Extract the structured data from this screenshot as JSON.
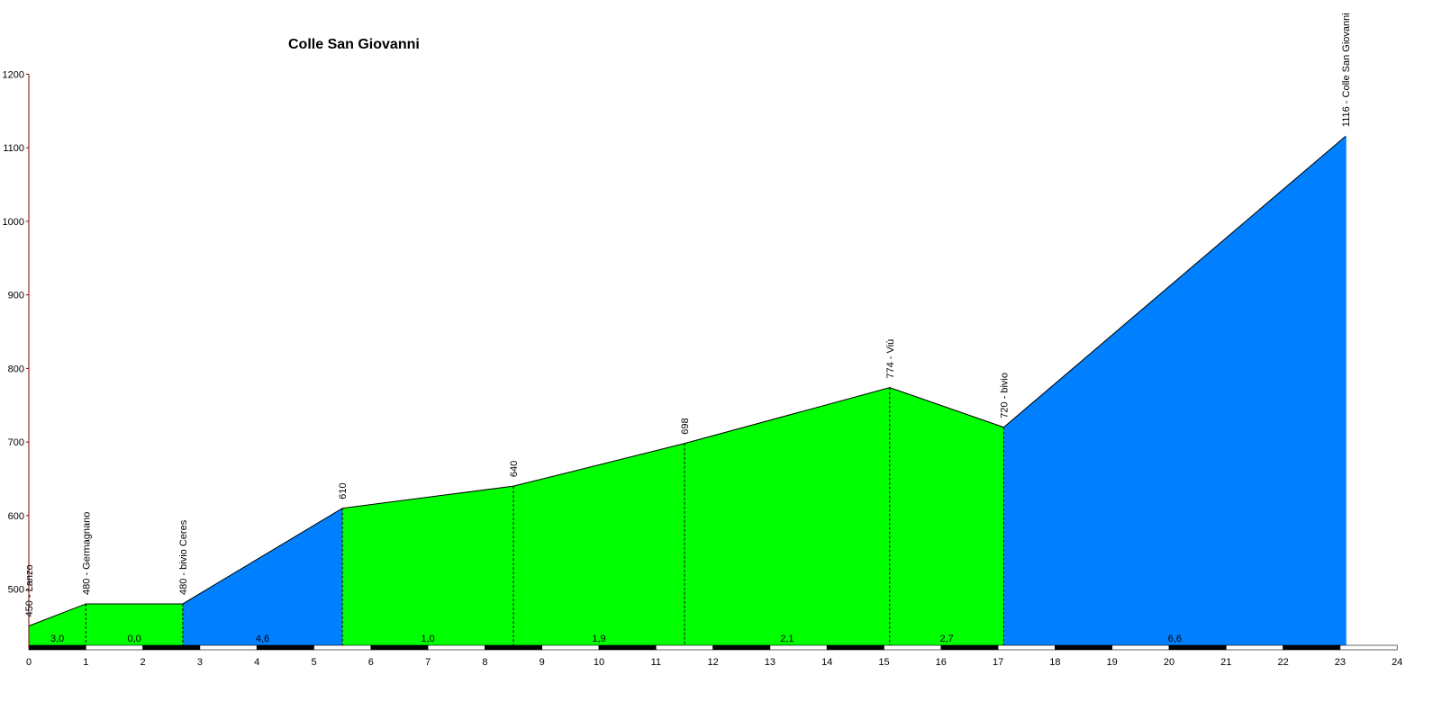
{
  "chart_data": {
    "type": "area",
    "title": "Colle San Giovanni",
    "xlabel": "",
    "ylabel": "",
    "xlim": [
      0,
      24
    ],
    "ylim": [
      420,
      1200
    ],
    "x_ticks": [
      "0",
      "1",
      "2",
      "3",
      "4",
      "5",
      "6",
      "7",
      "8",
      "9",
      "10",
      "11",
      "12",
      "13",
      "14",
      "15",
      "16",
      "17",
      "18",
      "19",
      "20",
      "21",
      "22",
      "23",
      "24"
    ],
    "y_ticks": [
      "500",
      "600",
      "700",
      "800",
      "900",
      "1000",
      "1100",
      "1200"
    ],
    "grid": false,
    "points": [
      {
        "x": 0,
        "y": 450,
        "label": "450 - Lanzo"
      },
      {
        "x": 1,
        "y": 480,
        "label": "480 - Germagnano"
      },
      {
        "x": 2.7,
        "y": 480,
        "label": "480 - bivio Ceres"
      },
      {
        "x": 5.5,
        "y": 610,
        "label": "610"
      },
      {
        "x": 8.5,
        "y": 640,
        "label": "640"
      },
      {
        "x": 11.5,
        "y": 698,
        "label": "698"
      },
      {
        "x": 15.1,
        "y": 774,
        "label": "774 - Viù"
      },
      {
        "x": 17.1,
        "y": 720,
        "label": "720 - bivio"
      },
      {
        "x": 23.1,
        "y": 1116,
        "label": "1116 - Colle San Giovanni"
      }
    ],
    "segments": [
      {
        "label": "3,0",
        "color": "#00ff00"
      },
      {
        "label": "0,0",
        "color": "#00ff00"
      },
      {
        "label": "4,6",
        "color": "#0080ff"
      },
      {
        "label": "1,0",
        "color": "#00ff00"
      },
      {
        "label": "1,9",
        "color": "#00ff00"
      },
      {
        "label": "2,1",
        "color": "#00ff00"
      },
      {
        "label": "2,7",
        "color": "#00ff00"
      },
      {
        "label": "6,6",
        "color": "#0080ff"
      }
    ],
    "colors": {
      "green": "#00ff00",
      "blue": "#0080ff",
      "axis": "#800000"
    }
  }
}
